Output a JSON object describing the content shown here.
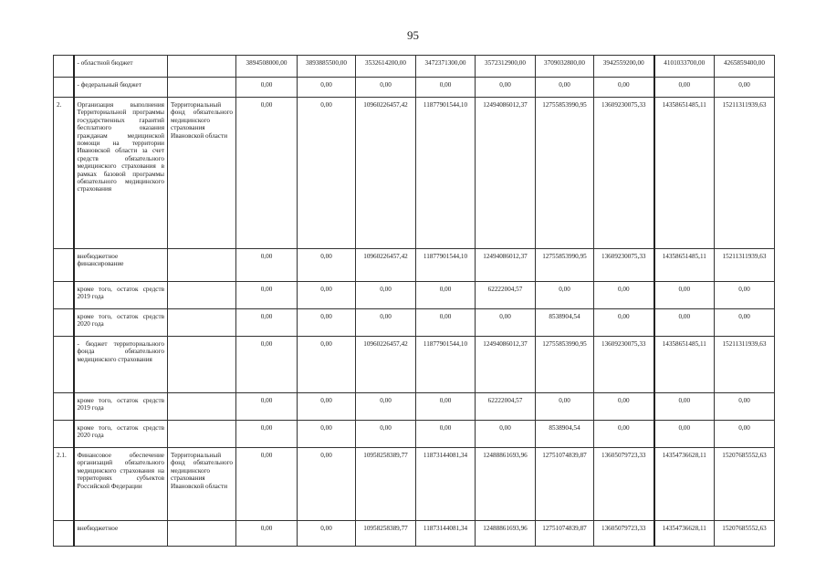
{
  "page_number": "95",
  "rows": [
    {
      "num": "",
      "name": "- областной бюджет",
      "exec": "",
      "values": [
        "3894508000,00",
        "3893885500,00",
        "3532614200,00",
        "3472371300,00",
        "3572312900,00",
        "3709032800,00",
        "3942559200,00",
        "4101033700,00",
        "4265859400,00"
      ]
    },
    {
      "num": "",
      "name": "- федеральный бюджет",
      "exec": "",
      "values": [
        "0,00",
        "0,00",
        "0,00",
        "0,00",
        "0,00",
        "0,00",
        "0,00",
        "0,00",
        "0,00"
      ]
    },
    {
      "num": "2.",
      "name": "Организация выполнения Территориальной программы государственных гарантий бесплатного оказания гражданам медицинской помощи на территории Ивановской области за счет средств обязательного медицинского страхования в рамках базовой программы обязательного медицинского страхования",
      "exec": "Территориальный фонд обязательного медицинского страхования Ивановской области",
      "values": [
        "0,00",
        "0,00",
        "10960226457,42",
        "11877901544,10",
        "12494086012,37",
        "12755853990,95",
        "13609230075,33",
        "14358651485,11",
        "15211311939,63"
      ]
    },
    {
      "num": "",
      "name": "внебюджетное финансирование",
      "exec": "",
      "values": [
        "0,00",
        "0,00",
        "10960226457,42",
        "11877901544,10",
        "12494086012,37",
        "12755853990,95",
        "13609230075,33",
        "14358651485,11",
        "15211311939,63"
      ]
    },
    {
      "num": "",
      "name": "кроме того, остаток средств 2019 года",
      "exec": "",
      "values": [
        "0,00",
        "0,00",
        "0,00",
        "0,00",
        "62222004,57",
        "0,00",
        "0,00",
        "0,00",
        "0,00"
      ]
    },
    {
      "num": "",
      "name": "кроме того, остаток средств 2020 года",
      "exec": "",
      "values": [
        "0,00",
        "0,00",
        "0,00",
        "0,00",
        "0,00",
        "8538904,54",
        "0,00",
        "0,00",
        "0,00"
      ]
    },
    {
      "num": "",
      "name": "- бюджет территориального фонда обязательного медицинского страхования",
      "exec": "",
      "values": [
        "0,00",
        "0,00",
        "10960226457,42",
        "11877901544,10",
        "12494086012,37",
        "12755853990,95",
        "13609230075,33",
        "14358651485,11",
        "15211311939,63"
      ]
    },
    {
      "num": "",
      "name": "кроме того, остаток средств 2019 года",
      "exec": "",
      "values": [
        "0,00",
        "0,00",
        "0,00",
        "0,00",
        "62222004,57",
        "0,00",
        "0,00",
        "0,00",
        "0,00"
      ]
    },
    {
      "num": "",
      "name": "кроме того, остаток средств 2020 года",
      "exec": "",
      "values": [
        "0,00",
        "0,00",
        "0,00",
        "0,00",
        "0,00",
        "8538904,54",
        "0,00",
        "0,00",
        "0,00"
      ]
    },
    {
      "num": "2.1.",
      "name": "Финансовое обеспечение организаций обязательного медицинского страхования на территориях субъектов Российской Федерации",
      "exec": "Территориальный фонд обязательного медицинского страхования Ивановской области",
      "values": [
        "0,00",
        "0,00",
        "10958258389,77",
        "11873144081,34",
        "12488861693,96",
        "12751074839,87",
        "13605079723,33",
        "14354736628,11",
        "15207685552,63"
      ]
    },
    {
      "num": "",
      "name": "внебюджетное",
      "exec": "",
      "values": [
        "0,00",
        "0,00",
        "10958258389,77",
        "11873144081,34",
        "12488861693,96",
        "12751074839,87",
        "13605079723,33",
        "14354736628,11",
        "15207685552,63"
      ]
    }
  ]
}
